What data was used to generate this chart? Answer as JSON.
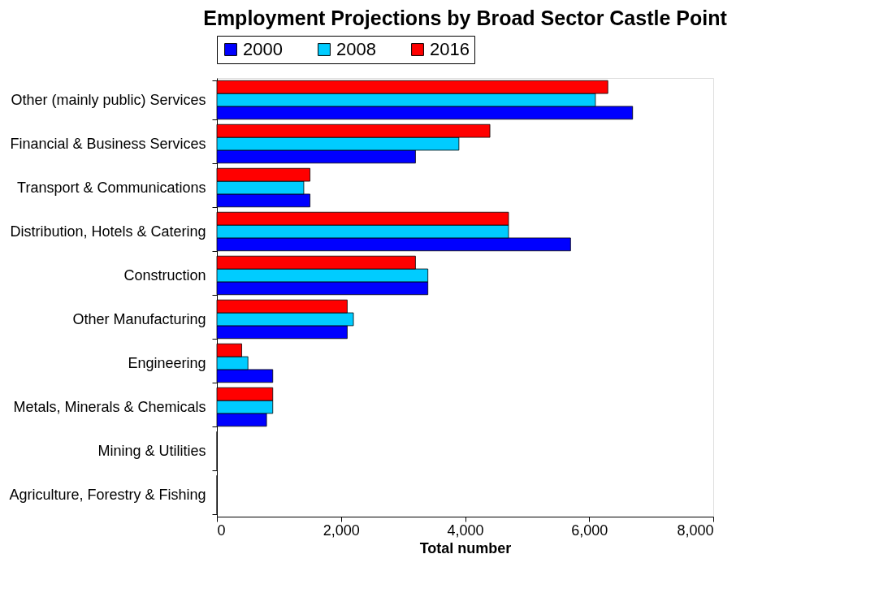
{
  "chart_data": {
    "type": "bar",
    "orientation": "horizontal",
    "title": "Employment Projections by Broad Sector Castle Point",
    "xlabel": "Total number",
    "categories": [
      "Other (mainly public) Services",
      "Financial & Business Services",
      "Transport & Communications",
      "Distribution, Hotels & Catering",
      "Construction",
      "Other Manufacturing",
      "Engineering",
      "Metals, Minerals & Chemicals",
      "Mining & Utilities",
      "Agriculture, Forestry & Fishing"
    ],
    "series": [
      {
        "name": "2000",
        "color": "#0000ff",
        "values": [
          6700,
          3200,
          1500,
          5700,
          3400,
          2100,
          900,
          800,
          0,
          0
        ]
      },
      {
        "name": "2008",
        "color": "#00ccff",
        "values": [
          6100,
          3900,
          1400,
          4700,
          3400,
          2200,
          500,
          900,
          0,
          0
        ]
      },
      {
        "name": "2016",
        "color": "#ff0000",
        "values": [
          6300,
          4400,
          1500,
          4700,
          3200,
          2100,
          400,
          900,
          0,
          0
        ]
      }
    ],
    "xlim": [
      0,
      8000
    ],
    "xticks": [
      {
        "value": 0,
        "label": "0"
      },
      {
        "value": 2000,
        "label": "2,000"
      },
      {
        "value": 4000,
        "label": "4,000"
      },
      {
        "value": 6000,
        "label": "6,000"
      },
      {
        "value": 8000,
        "label": "8,000"
      }
    ],
    "grid": false,
    "legend": "top"
  }
}
